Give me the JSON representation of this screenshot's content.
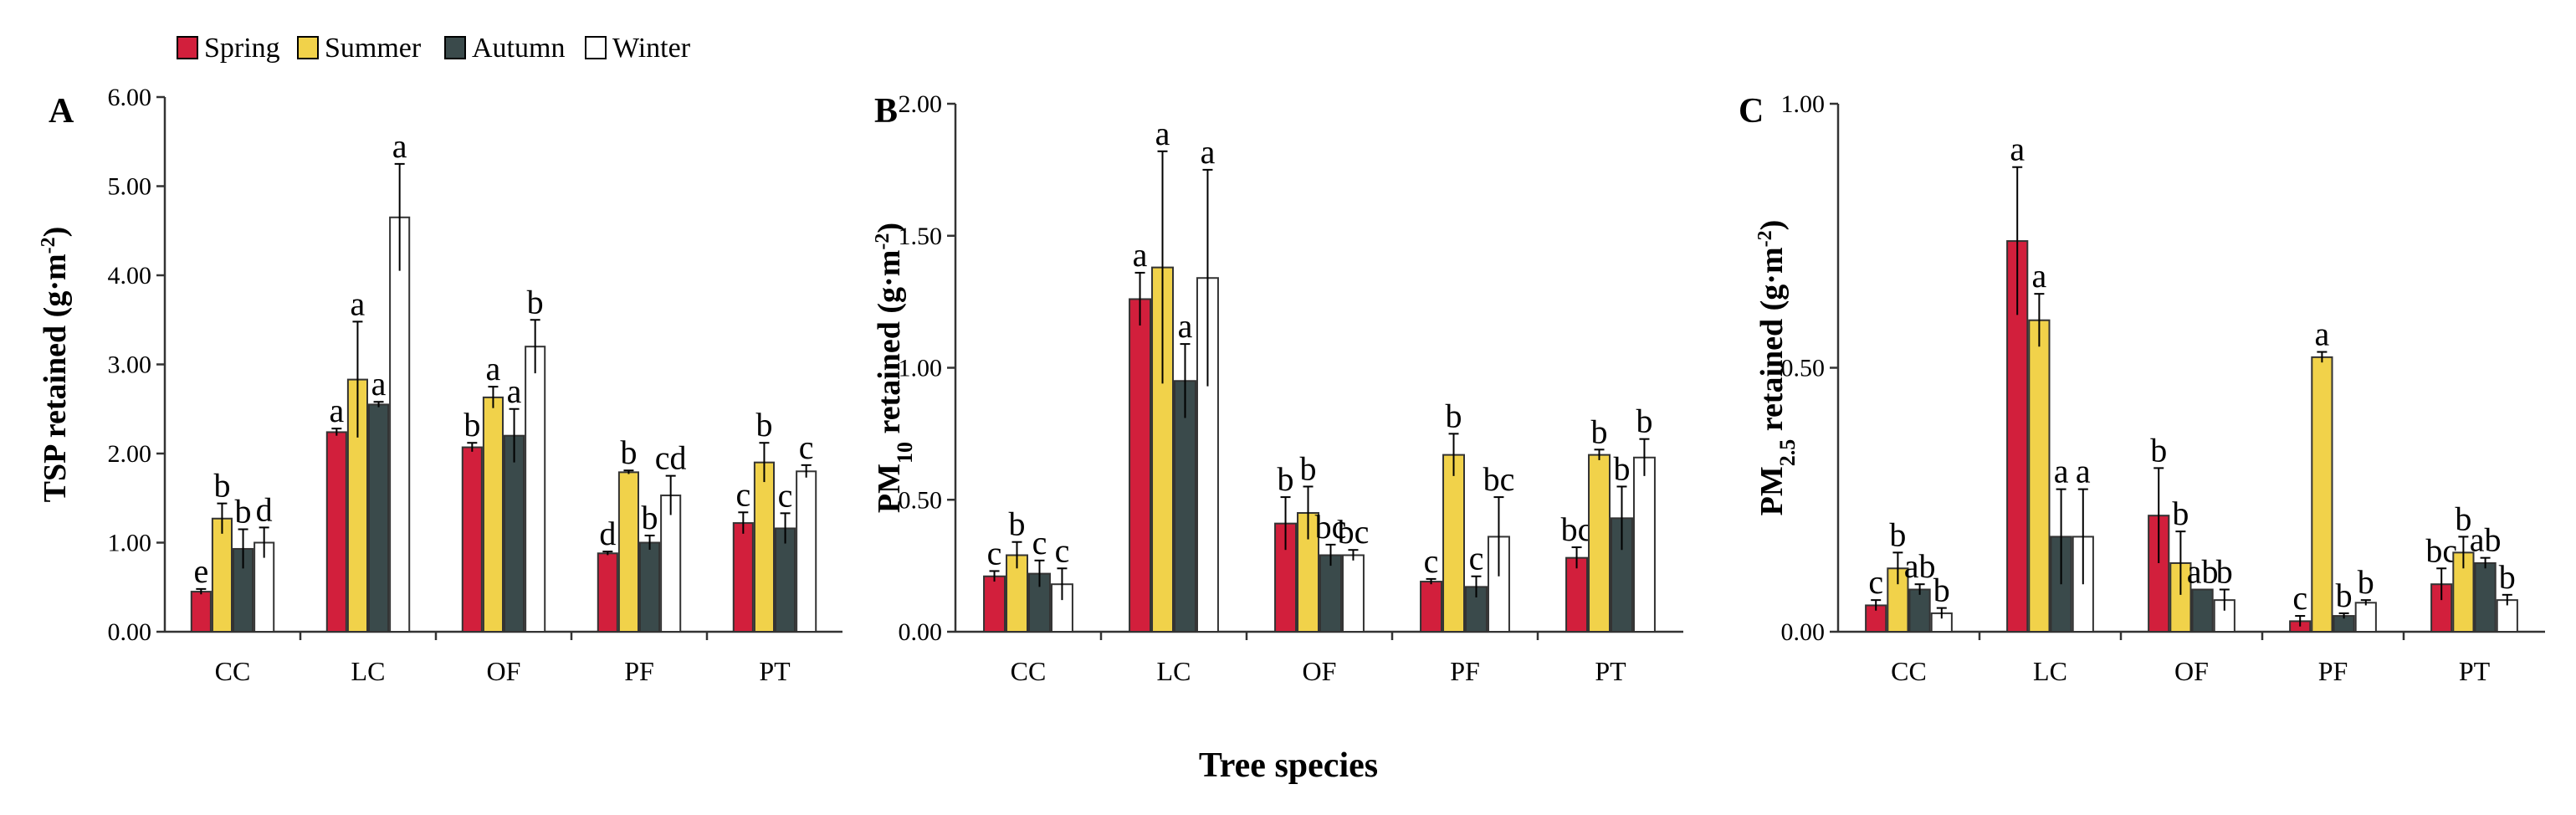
{
  "figure": {
    "xlabel": "Tree species",
    "legend": [
      {
        "name": "Spring",
        "color": "#d21f3c"
      },
      {
        "name": "Summer",
        "color": "#f1d24a"
      },
      {
        "name": "Autumn",
        "color": "#3a4a4b"
      },
      {
        "name": "Winter",
        "color": "#ffffff"
      }
    ]
  },
  "chart_data": [
    {
      "panel": "A",
      "type": "bar",
      "ylabel_main": "TSP retained (g·m",
      "ylabel_sup": "-2",
      "ylabel_end": ")",
      "ylim": [
        0,
        6
      ],
      "yticks": [
        0,
        1,
        2,
        3,
        4,
        5,
        6
      ],
      "ytick_labels": [
        "0.00",
        "1.00",
        "2.00",
        "3.00",
        "4.00",
        "5.00",
        "6.00"
      ],
      "categories": [
        "CC",
        "LC",
        "OF",
        "PF",
        "PT"
      ],
      "series": [
        {
          "name": "Spring",
          "values": [
            0.45,
            2.24,
            2.07,
            0.88,
            1.22
          ],
          "errors": [
            0.03,
            0.04,
            0.05,
            0.02,
            0.12
          ],
          "letters": [
            "e",
            "a",
            "b",
            "d",
            "c"
          ]
        },
        {
          "name": "Summer",
          "values": [
            1.27,
            2.83,
            2.63,
            1.79,
            1.9
          ],
          "errors": [
            0.17,
            0.65,
            0.12,
            0.02,
            0.22
          ],
          "letters": [
            "b",
            "a",
            "a",
            "b",
            "b"
          ]
        },
        {
          "name": "Autumn",
          "values": [
            0.93,
            2.55,
            2.2,
            1.0,
            1.16
          ],
          "errors": [
            0.22,
            0.03,
            0.3,
            0.08,
            0.17
          ],
          "letters": [
            "b",
            "a",
            "a",
            "b",
            "c"
          ]
        },
        {
          "name": "Winter",
          "values": [
            1.0,
            4.65,
            3.2,
            1.53,
            1.8
          ],
          "errors": [
            0.17,
            0.6,
            0.3,
            0.22,
            0.07
          ],
          "letters": [
            "d",
            "a",
            "b",
            "cd",
            "c"
          ]
        }
      ]
    },
    {
      "panel": "B",
      "type": "bar",
      "ylabel_main": "PM",
      "ylabel_sub": "10",
      "ylabel_mid": " retained (g·m",
      "ylabel_sup": "-2",
      "ylabel_end": ")",
      "ylim": [
        0,
        2
      ],
      "yticks": [
        0,
        0.5,
        1,
        1.5,
        2
      ],
      "ytick_labels": [
        "0.00",
        "0.50",
        "1.00",
        "1.50",
        "2.00"
      ],
      "categories": [
        "CC",
        "LC",
        "OF",
        "PF",
        "PT"
      ],
      "series": [
        {
          "name": "Spring",
          "values": [
            0.21,
            1.26,
            0.41,
            0.19,
            0.28
          ],
          "errors": [
            0.02,
            0.1,
            0.1,
            0.01,
            0.04
          ],
          "letters": [
            "c",
            "a",
            "b",
            "c",
            "bc"
          ]
        },
        {
          "name": "Summer",
          "values": [
            0.29,
            1.38,
            0.45,
            0.67,
            0.67
          ],
          "errors": [
            0.05,
            0.44,
            0.1,
            0.08,
            0.02
          ],
          "letters": [
            "b",
            "a",
            "b",
            "b",
            "b"
          ]
        },
        {
          "name": "Autumn",
          "values": [
            0.22,
            0.95,
            0.29,
            0.17,
            0.43
          ],
          "errors": [
            0.05,
            0.14,
            0.04,
            0.04,
            0.12
          ],
          "letters": [
            "c",
            "a",
            "bc",
            "c",
            "b"
          ]
        },
        {
          "name": "Winter",
          "values": [
            0.18,
            1.34,
            0.29,
            0.36,
            0.66
          ],
          "errors": [
            0.06,
            0.41,
            0.02,
            0.15,
            0.07
          ],
          "letters": [
            "c",
            "a",
            "bc",
            "bc",
            "b"
          ]
        }
      ]
    },
    {
      "panel": "C",
      "type": "bar",
      "ylabel_main": "PM",
      "ylabel_sub": "2.5",
      "ylabel_mid": " retained (g·m",
      "ylabel_sup": "-2",
      "ylabel_end": ")",
      "ylim": [
        0,
        1
      ],
      "yticks": [
        0,
        0.5,
        1
      ],
      "ytick_labels": [
        "0.00",
        "0.50",
        "1.00"
      ],
      "categories": [
        "CC",
        "LC",
        "OF",
        "PF",
        "PT"
      ],
      "series": [
        {
          "name": "Spring",
          "values": [
            0.05,
            0.74,
            0.22,
            0.02,
            0.09
          ],
          "errors": [
            0.01,
            0.14,
            0.09,
            0.01,
            0.03
          ],
          "letters": [
            "c",
            "a",
            "b",
            "c",
            "bc"
          ]
        },
        {
          "name": "Summer",
          "values": [
            0.12,
            0.59,
            0.13,
            0.52,
            0.15
          ],
          "errors": [
            0.03,
            0.05,
            0.06,
            0.01,
            0.03
          ],
          "letters": [
            "b",
            "a",
            "b",
            "a",
            "b"
          ]
        },
        {
          "name": "Autumn",
          "values": [
            0.08,
            0.18,
            0.08,
            0.03,
            0.13
          ],
          "errors": [
            0.01,
            0.09,
            0.0,
            0.005,
            0.01
          ],
          "letters": [
            "ab",
            "a",
            "ab",
            "b",
            "ab"
          ]
        },
        {
          "name": "Winter",
          "values": [
            0.035,
            0.18,
            0.06,
            0.055,
            0.06
          ],
          "errors": [
            0.01,
            0.09,
            0.02,
            0.005,
            0.01
          ],
          "letters": [
            "b",
            "a",
            "b",
            "b",
            "b"
          ]
        }
      ]
    }
  ]
}
